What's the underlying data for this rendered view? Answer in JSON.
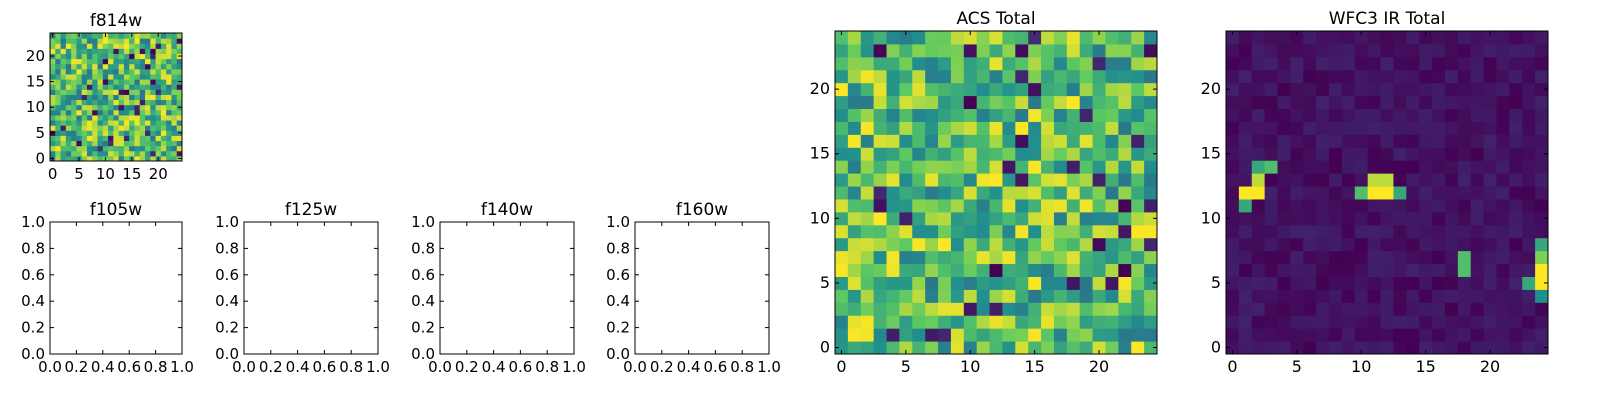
{
  "figure": {
    "background": "#ffffff"
  },
  "colormap": {
    "name": "viridis",
    "stops": [
      "#440154",
      "#3b528b",
      "#21908d",
      "#5dc962",
      "#fde725"
    ]
  },
  "chart_data": [
    {
      "type": "heatmap",
      "title": "f814w",
      "xlim": [
        -0.5,
        24.5
      ],
      "ylim": [
        -0.5,
        24.5
      ],
      "xticks": [
        0,
        5,
        10,
        15,
        20
      ],
      "yticks": [
        0,
        5,
        10,
        15,
        20
      ],
      "grid_size": [
        25,
        25
      ],
      "pattern": "random",
      "value_range": [
        0,
        1
      ],
      "values_note_seed": 814
    },
    {
      "type": "empty",
      "title": "f105w",
      "xlim": [
        0,
        1
      ],
      "ylim": [
        0,
        1
      ],
      "xticks": [
        "0.0",
        "0.2",
        "0.4",
        "0.6",
        "0.8",
        "1.0"
      ],
      "yticks": [
        "0.0",
        "0.2",
        "0.4",
        "0.6",
        "0.8",
        "1.0"
      ]
    },
    {
      "type": "empty",
      "title": "f125w",
      "xlim": [
        0,
        1
      ],
      "ylim": [
        0,
        1
      ],
      "xticks": [
        "0.0",
        "0.2",
        "0.4",
        "0.6",
        "0.8",
        "1.0"
      ],
      "yticks": [
        "0.0",
        "0.2",
        "0.4",
        "0.6",
        "0.8",
        "1.0"
      ]
    },
    {
      "type": "empty",
      "title": "f140w",
      "xlim": [
        0,
        1
      ],
      "ylim": [
        0,
        1
      ],
      "xticks": [
        "0.0",
        "0.2",
        "0.4",
        "0.6",
        "0.8",
        "1.0"
      ],
      "yticks": [
        "0.0",
        "0.2",
        "0.4",
        "0.6",
        "0.8",
        "1.0"
      ]
    },
    {
      "type": "empty",
      "title": "f160w",
      "xlim": [
        0,
        1
      ],
      "ylim": [
        0,
        1
      ],
      "xticks": [
        "0.0",
        "0.2",
        "0.4",
        "0.6",
        "0.8",
        "1.0"
      ],
      "yticks": [
        "0.0",
        "0.2",
        "0.4",
        "0.6",
        "0.8",
        "1.0"
      ]
    },
    {
      "type": "heatmap",
      "title": "ACS Total",
      "xlim": [
        -0.5,
        24.5
      ],
      "ylim": [
        -0.5,
        24.5
      ],
      "xticks": [
        0,
        5,
        10,
        15,
        20
      ],
      "yticks": [
        0,
        5,
        10,
        15,
        20
      ],
      "grid_size": [
        25,
        25
      ],
      "pattern": "random",
      "value_range": [
        0,
        1
      ],
      "values_note_seed": 1234
    },
    {
      "type": "heatmap",
      "title": "WFC3 IR Total",
      "xlim": [
        -0.5,
        24.5
      ],
      "ylim": [
        -0.5,
        24.5
      ],
      "xticks": [
        0,
        5,
        10,
        15,
        20
      ],
      "yticks": [
        0,
        5,
        10,
        15,
        20
      ],
      "grid_size": [
        25,
        25
      ],
      "pattern": "background_with_sources",
      "value_range": [
        0,
        1
      ],
      "background_level": [
        0.0,
        0.1
      ],
      "sources": [
        {
          "x": 1,
          "y": 11,
          "value": 0.6
        },
        {
          "x": 2,
          "y": 12,
          "value": 1.0
        },
        {
          "x": 2,
          "y": 13,
          "value": 0.9
        },
        {
          "x": 3,
          "y": 14,
          "value": 0.7
        },
        {
          "x": 2,
          "y": 14,
          "value": 0.6
        },
        {
          "x": 1,
          "y": 12,
          "value": 1.0
        },
        {
          "x": 10,
          "y": 12,
          "value": 0.7
        },
        {
          "x": 11,
          "y": 12,
          "value": 1.0
        },
        {
          "x": 12,
          "y": 12,
          "value": 1.0
        },
        {
          "x": 13,
          "y": 12,
          "value": 0.6
        },
        {
          "x": 11,
          "y": 13,
          "value": 0.9
        },
        {
          "x": 12,
          "y": 13,
          "value": 0.9
        },
        {
          "x": 18,
          "y": 6,
          "value": 0.7
        },
        {
          "x": 18,
          "y": 7,
          "value": 0.7
        },
        {
          "x": 24,
          "y": 4,
          "value": 0.5
        },
        {
          "x": 24,
          "y": 5,
          "value": 1.0
        },
        {
          "x": 24,
          "y": 6,
          "value": 1.0
        },
        {
          "x": 24,
          "y": 7,
          "value": 0.8
        },
        {
          "x": 24,
          "y": 8,
          "value": 0.6
        },
        {
          "x": 23,
          "y": 5,
          "value": 0.6
        }
      ]
    }
  ]
}
